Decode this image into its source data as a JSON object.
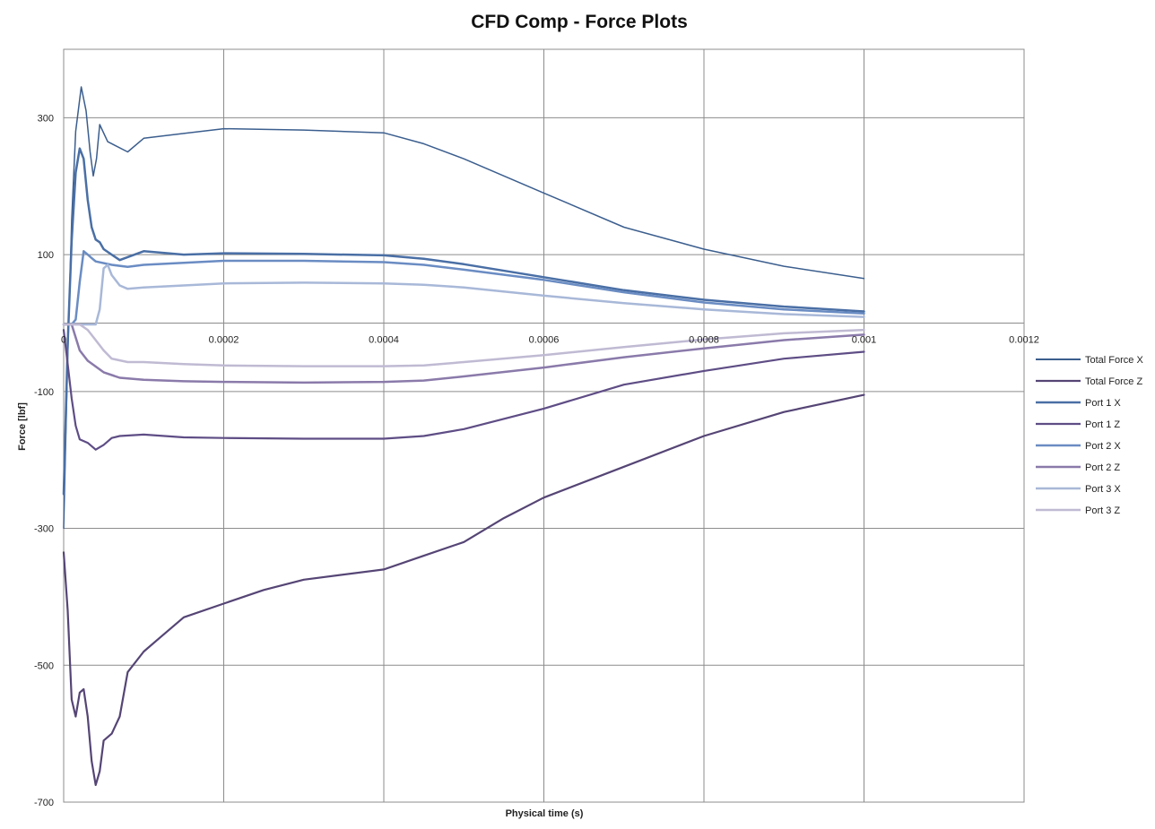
{
  "chart_data": {
    "type": "line",
    "title": "CFD Comp - Force Plots",
    "xlabel": "Physical  time (s)",
    "ylabel": "Force   [lbf]",
    "xlim": [
      0,
      0.0012
    ],
    "ylim": [
      -700,
      400
    ],
    "x_ticks": [
      0,
      0.0002,
      0.0004,
      0.0006,
      0.0008,
      0.001,
      0.0012
    ],
    "x_tick_labels": [
      "0",
      "0.0002",
      "0.0004",
      "0.0006",
      "0.0008",
      "0.001",
      "0.0012"
    ],
    "y_ticks": [
      300,
      100,
      -100,
      -300,
      -500,
      -700
    ],
    "y_tick_labels": [
      "300",
      "100",
      "-100",
      "-300",
      "-500",
      "-700"
    ],
    "grid": true,
    "legend_position": "right",
    "series": [
      {
        "name": "Total Force X",
        "color": "#3b5e8e",
        "width": 1.5,
        "points": [
          [
            0,
            -300
          ],
          [
            5e-06,
            -50
          ],
          [
            1e-05,
            150
          ],
          [
            1.5e-05,
            280
          ],
          [
            2.2e-05,
            345
          ],
          [
            2.8e-05,
            310
          ],
          [
            3.3e-05,
            250
          ],
          [
            3.7e-05,
            215
          ],
          [
            4.1e-05,
            240
          ],
          [
            4.5e-05,
            290
          ],
          [
            5.5e-05,
            265
          ],
          [
            8e-05,
            250
          ],
          [
            0.0001,
            270
          ],
          [
            0.00015,
            277
          ],
          [
            0.0002,
            284
          ],
          [
            0.0003,
            282
          ],
          [
            0.0004,
            278
          ],
          [
            0.00045,
            262
          ],
          [
            0.0005,
            240
          ],
          [
            0.0006,
            190
          ],
          [
            0.0007,
            140
          ],
          [
            0.0008,
            108
          ],
          [
            0.0009,
            83
          ],
          [
            0.001,
            65
          ]
        ]
      },
      {
        "name": "Total Force Z",
        "color": "#554575",
        "width": 2.2,
        "points": [
          [
            0,
            -335
          ],
          [
            5e-06,
            -420
          ],
          [
            1e-05,
            -550
          ],
          [
            1.5e-05,
            -575
          ],
          [
            2e-05,
            -540
          ],
          [
            2.5e-05,
            -535
          ],
          [
            3e-05,
            -575
          ],
          [
            3.5e-05,
            -640
          ],
          [
            4e-05,
            -675
          ],
          [
            4.5e-05,
            -655
          ],
          [
            5e-05,
            -610
          ],
          [
            6e-05,
            -600
          ],
          [
            7e-05,
            -575
          ],
          [
            8e-05,
            -510
          ],
          [
            0.0001,
            -480
          ],
          [
            0.00012,
            -460
          ],
          [
            0.00015,
            -430
          ],
          [
            0.0002,
            -410
          ],
          [
            0.00025,
            -390
          ],
          [
            0.0003,
            -375
          ],
          [
            0.0004,
            -360
          ],
          [
            0.00045,
            -340
          ],
          [
            0.0005,
            -320
          ],
          [
            0.00055,
            -285
          ],
          [
            0.0006,
            -255
          ],
          [
            0.0007,
            -210
          ],
          [
            0.0008,
            -165
          ],
          [
            0.0009,
            -130
          ],
          [
            0.001,
            -105
          ]
        ]
      },
      {
        "name": "Port 1 X",
        "color": "#4a6fa5",
        "width": 2.5,
        "points": [
          [
            0,
            -250
          ],
          [
            5e-06,
            -30
          ],
          [
            1e-05,
            120
          ],
          [
            1.5e-05,
            220
          ],
          [
            2e-05,
            255
          ],
          [
            2.5e-05,
            240
          ],
          [
            3e-05,
            180
          ],
          [
            3.5e-05,
            140
          ],
          [
            4e-05,
            122
          ],
          [
            4.5e-05,
            118
          ],
          [
            5e-05,
            108
          ],
          [
            7e-05,
            92
          ],
          [
            0.0001,
            105
          ],
          [
            0.00015,
            100
          ],
          [
            0.0002,
            102
          ],
          [
            0.0003,
            101
          ],
          [
            0.0004,
            99
          ],
          [
            0.00045,
            94
          ],
          [
            0.0005,
            86
          ],
          [
            0.0006,
            67
          ],
          [
            0.0007,
            48
          ],
          [
            0.0008,
            34
          ],
          [
            0.0009,
            24
          ],
          [
            0.001,
            17
          ]
        ]
      },
      {
        "name": "Port 1 Z",
        "color": "#5e4d85",
        "width": 2.2,
        "points": [
          [
            0,
            -10
          ],
          [
            5e-06,
            -60
          ],
          [
            1e-05,
            -110
          ],
          [
            1.5e-05,
            -150
          ],
          [
            2e-05,
            -170
          ],
          [
            3e-05,
            -175
          ],
          [
            4e-05,
            -185
          ],
          [
            5e-05,
            -178
          ],
          [
            6e-05,
            -168
          ],
          [
            7e-05,
            -165
          ],
          [
            0.0001,
            -163
          ],
          [
            0.00015,
            -167
          ],
          [
            0.0002,
            -168
          ],
          [
            0.0003,
            -169
          ],
          [
            0.0004,
            -169
          ],
          [
            0.00045,
            -165
          ],
          [
            0.0005,
            -155
          ],
          [
            0.0006,
            -125
          ],
          [
            0.0007,
            -90
          ],
          [
            0.0008,
            -70
          ],
          [
            0.0009,
            -52
          ],
          [
            0.001,
            -42
          ]
        ]
      },
      {
        "name": "Port 2 X",
        "color": "#6a8cc3",
        "width": 2.5,
        "points": [
          [
            0,
            -2
          ],
          [
            1e-05,
            -2
          ],
          [
            1.5e-05,
            5
          ],
          [
            2e-05,
            60
          ],
          [
            2.5e-05,
            105
          ],
          [
            3e-05,
            100
          ],
          [
            3.5e-05,
            95
          ],
          [
            4e-05,
            90
          ],
          [
            6e-05,
            85
          ],
          [
            8e-05,
            82
          ],
          [
            0.0001,
            85
          ],
          [
            0.00015,
            88
          ],
          [
            0.0002,
            91
          ],
          [
            0.0003,
            91
          ],
          [
            0.0004,
            89
          ],
          [
            0.00045,
            85
          ],
          [
            0.0005,
            78
          ],
          [
            0.0006,
            63
          ],
          [
            0.0007,
            45
          ],
          [
            0.0008,
            30
          ],
          [
            0.0009,
            20
          ],
          [
            0.001,
            14
          ]
        ]
      },
      {
        "name": "Port 2 Z",
        "color": "#8a7aaa",
        "width": 2.5,
        "points": [
          [
            0,
            -2
          ],
          [
            1e-05,
            -2
          ],
          [
            2e-05,
            -40
          ],
          [
            3e-05,
            -55
          ],
          [
            5e-05,
            -72
          ],
          [
            7e-05,
            -80
          ],
          [
            0.0001,
            -83
          ],
          [
            0.00015,
            -85
          ],
          [
            0.0002,
            -86
          ],
          [
            0.0003,
            -87
          ],
          [
            0.0004,
            -86
          ],
          [
            0.00045,
            -84
          ],
          [
            0.0005,
            -78
          ],
          [
            0.0006,
            -65
          ],
          [
            0.0007,
            -50
          ],
          [
            0.0008,
            -37
          ],
          [
            0.0009,
            -25
          ],
          [
            0.001,
            -17
          ]
        ]
      },
      {
        "name": "Port 3 X",
        "color": "#a8b8d8",
        "width": 2.5,
        "points": [
          [
            0,
            -2
          ],
          [
            3e-05,
            -2
          ],
          [
            4e-05,
            -2
          ],
          [
            4.5e-05,
            20
          ],
          [
            5e-05,
            80
          ],
          [
            5.5e-05,
            85
          ],
          [
            6e-05,
            70
          ],
          [
            7e-05,
            55
          ],
          [
            8e-05,
            50
          ],
          [
            0.0001,
            52
          ],
          [
            0.00015,
            55
          ],
          [
            0.0002,
            58
          ],
          [
            0.0003,
            59
          ],
          [
            0.0004,
            58
          ],
          [
            0.00045,
            56
          ],
          [
            0.0005,
            52
          ],
          [
            0.0006,
            40
          ],
          [
            0.0007,
            29
          ],
          [
            0.0008,
            20
          ],
          [
            0.0009,
            13
          ],
          [
            0.001,
            9
          ]
        ]
      },
      {
        "name": "Port 3 Z",
        "color": "#c0bad3",
        "width": 2.5,
        "points": [
          [
            0,
            -2
          ],
          [
            2e-05,
            -2
          ],
          [
            3e-05,
            -10
          ],
          [
            4e-05,
            -25
          ],
          [
            5e-05,
            -40
          ],
          [
            6e-05,
            -52
          ],
          [
            8e-05,
            -57
          ],
          [
            0.0001,
            -57
          ],
          [
            0.00015,
            -60
          ],
          [
            0.0002,
            -62
          ],
          [
            0.0003,
            -63
          ],
          [
            0.0004,
            -63
          ],
          [
            0.00045,
            -62
          ],
          [
            0.0005,
            -57
          ],
          [
            0.0006,
            -47
          ],
          [
            0.0007,
            -35
          ],
          [
            0.0008,
            -24
          ],
          [
            0.0009,
            -15
          ],
          [
            0.001,
            -10
          ]
        ]
      }
    ]
  }
}
